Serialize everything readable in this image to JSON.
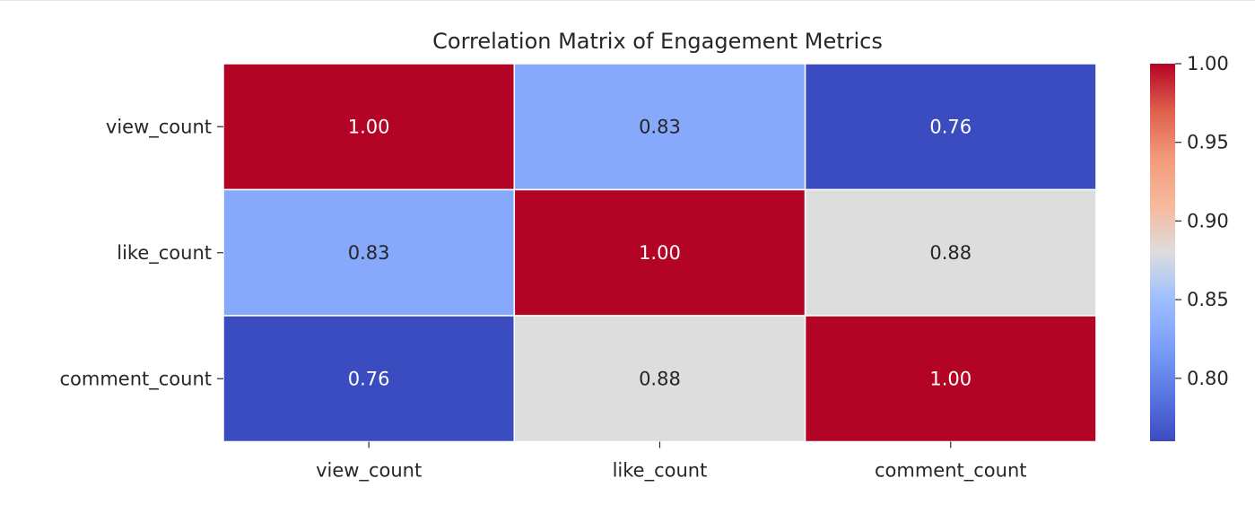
{
  "chart_data": {
    "type": "heatmap",
    "title": "Correlation Matrix of Engagement Metrics",
    "xlabel": "",
    "ylabel": "",
    "x_categories": [
      "view_count",
      "like_count",
      "comment_count"
    ],
    "y_categories": [
      "view_count",
      "like_count",
      "comment_count"
    ],
    "values": [
      [
        1.0,
        0.83,
        0.76
      ],
      [
        0.83,
        1.0,
        0.88
      ],
      [
        0.76,
        0.88,
        1.0
      ]
    ],
    "annotations": [
      [
        "1.00",
        "0.83",
        "0.76"
      ],
      [
        "0.83",
        "1.00",
        "0.88"
      ],
      [
        "0.76",
        "0.88",
        "1.00"
      ]
    ],
    "colormap": "coolwarm",
    "vmin": 0.76,
    "vmax": 1.0,
    "colorbar": {
      "ticks": [
        0.8,
        0.85,
        0.9,
        0.95,
        1.0
      ],
      "tick_labels": [
        "0.80",
        "0.85",
        "0.90",
        "0.95",
        "1.00"
      ],
      "placement": "right"
    },
    "grid": false
  }
}
